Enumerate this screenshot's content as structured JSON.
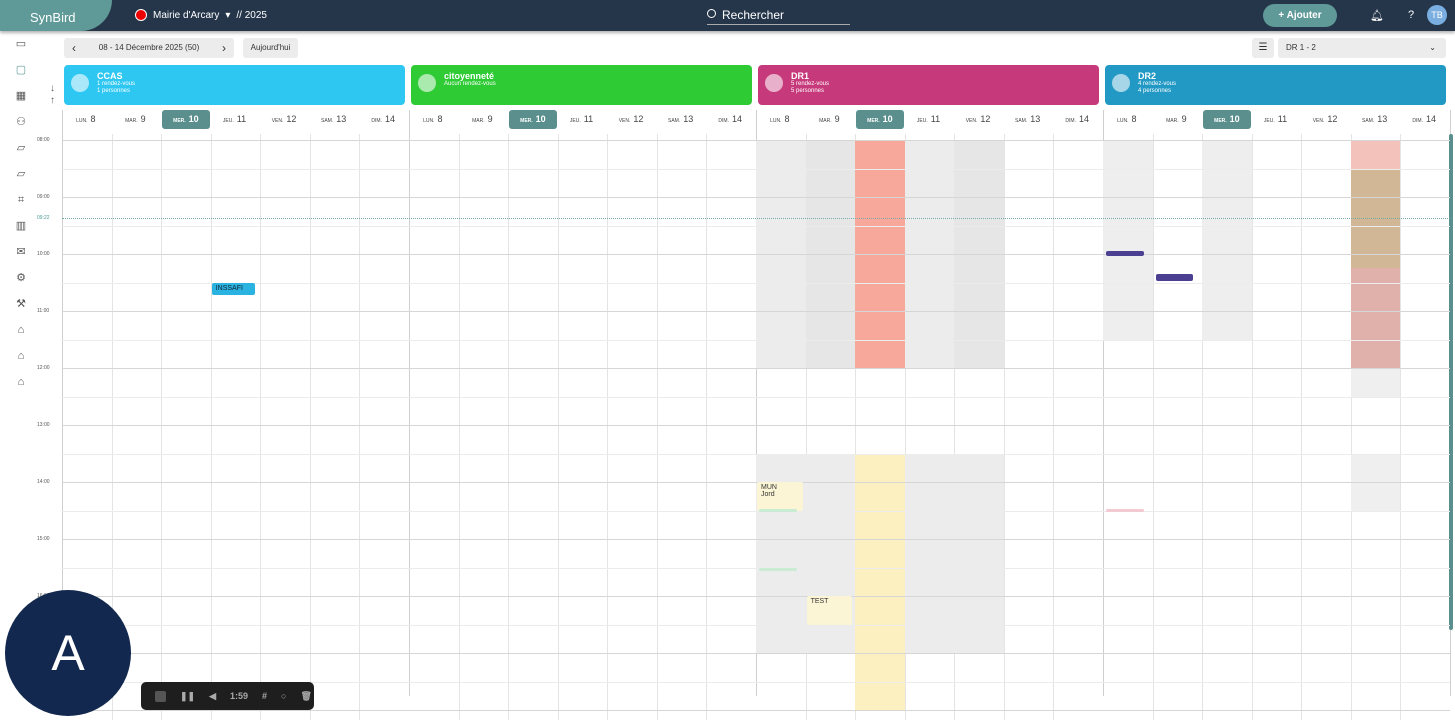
{
  "header": {
    "logo": "SynBird",
    "org": "Mairie d'Arcary",
    "year": "// 2025",
    "search": "Rechercher",
    "add": "+ Ajouter",
    "avatar": "TB"
  },
  "toolbar": {
    "range": "08 - 14 Décembre 2025 (50)",
    "today": "Aujourd'hui",
    "filter": "DR 1 - 2"
  },
  "sidebar": [
    "ticket-icon",
    "calendar-icon",
    "dashboard-icon",
    "users-icon",
    "folder-icon",
    "folder-icon",
    "scan-icon",
    "chart-icon",
    "mail-icon",
    "gear-icon",
    "wrench-icon",
    "graduation-icon",
    "bank-icon",
    "bank-icon"
  ],
  "days": [
    {
      "abbr": "LUN.",
      "n": "8"
    },
    {
      "abbr": "MAR.",
      "n": "9"
    },
    {
      "abbr": "MER.",
      "n": "10"
    },
    {
      "abbr": "JEU.",
      "n": "11"
    },
    {
      "abbr": "VEN.",
      "n": "12"
    },
    {
      "abbr": "SAM.",
      "n": "13"
    },
    {
      "abbr": "DIM.",
      "n": "14"
    }
  ],
  "today_index": 2,
  "hours": [
    "08:00",
    "09:00",
    "10:00",
    "11:00",
    "12:00",
    "13:00",
    "14:00",
    "15:00",
    "16:00"
  ],
  "now": {
    "label": "09:22",
    "time": 9.37
  },
  "groups": [
    {
      "name": "CCAS",
      "lines": [
        "1 rendez-vous",
        "1 personnes"
      ],
      "color": "#2ec7f2"
    },
    {
      "name": "citoyenneté",
      "lines": [
        "Aucun rendez-vous"
      ],
      "color": "#2ecb35"
    },
    {
      "name": "DR1",
      "lines": [
        "5 rendez-vous",
        "5 personnes"
      ],
      "color": "#c63a7b"
    },
    {
      "name": "DR2",
      "lines": [
        "4 rendez-vous",
        "4 personnes"
      ],
      "color": "#2299c4"
    }
  ],
  "blocks": [
    {
      "g": 2,
      "d": 0,
      "s": 8,
      "e": 12,
      "c": "#ececec"
    },
    {
      "g": 2,
      "d": 1,
      "s": 8,
      "e": 12,
      "c": "#e6e6e6"
    },
    {
      "g": 2,
      "d": 2,
      "s": 8,
      "e": 12,
      "c": "#f8a89a"
    },
    {
      "g": 2,
      "d": 3,
      "s": 8,
      "e": 12,
      "c": "#ececec"
    },
    {
      "g": 2,
      "d": 4,
      "s": 8,
      "e": 12,
      "c": "#e6e6e6"
    },
    {
      "g": 2,
      "d": 0,
      "s": 13.5,
      "e": 17,
      "c": "#ececec"
    },
    {
      "g": 2,
      "d": 1,
      "s": 13.5,
      "e": 17,
      "c": "#ececec"
    },
    {
      "g": 2,
      "d": 2,
      "s": 13.5,
      "e": 18,
      "c": "#fdf0c0"
    },
    {
      "g": 2,
      "d": 3,
      "s": 13.5,
      "e": 17,
      "c": "#ececec"
    },
    {
      "g": 2,
      "d": 4,
      "s": 13.5,
      "e": 17,
      "c": "#ececec"
    },
    {
      "g": 3,
      "d": 0,
      "s": 8,
      "e": 11.5,
      "c": "#eeeeee"
    },
    {
      "g": 3,
      "d": 2,
      "s": 8,
      "e": 11.5,
      "c": "#eeeeee"
    },
    {
      "g": 3,
      "d": 5,
      "s": 8,
      "e": 8.5,
      "c": "#f2c2bb"
    },
    {
      "g": 3,
      "d": 5,
      "s": 8.5,
      "e": 10.25,
      "c": "#d2b796"
    },
    {
      "g": 3,
      "d": 5,
      "s": 10.25,
      "e": 12,
      "c": "#e0b0aa"
    },
    {
      "g": 3,
      "d": 5,
      "s": 12,
      "e": 12.5,
      "c": "#efefef"
    },
    {
      "g": 3,
      "d": 5,
      "s": 13.5,
      "e": 14.5,
      "c": "#efefef"
    }
  ],
  "events": [
    {
      "g": 0,
      "d": 3,
      "s": 10.5,
      "e": 10.72,
      "c": "#2ab3e0",
      "label": "INSSAFI"
    },
    {
      "g": 2,
      "d": 0,
      "s": 14,
      "e": 14.5,
      "c": "#fbf5d6",
      "label": "MUN\nJord"
    },
    {
      "g": 2,
      "d": 1,
      "s": 16,
      "e": 16.5,
      "c": "#fbf5d6",
      "label": "TEST"
    },
    {
      "g": 3,
      "d": 0,
      "s": 9.95,
      "e": 10.03,
      "c": "#4b3f92",
      "label": ""
    },
    {
      "g": 3,
      "d": 1,
      "s": 10.35,
      "e": 10.47,
      "c": "#4b3f92",
      "label": ""
    },
    {
      "g": 3,
      "d": 0,
      "s": 14.47,
      "e": 14.53,
      "c": "#f3c9d2",
      "label": ""
    },
    {
      "g": 2,
      "d": 0,
      "s": 14.47,
      "e": 14.53,
      "c": "#c9ecd2",
      "label": ""
    },
    {
      "g": 2,
      "d": 0,
      "s": 15.5,
      "e": 15.56,
      "c": "#c9ecd2",
      "label": ""
    }
  ],
  "recorder": {
    "time": "1:59"
  },
  "overlay": {
    "letter": "A"
  },
  "colors": {
    "accent": "#5f9a98",
    "topbar": "#25364a"
  }
}
